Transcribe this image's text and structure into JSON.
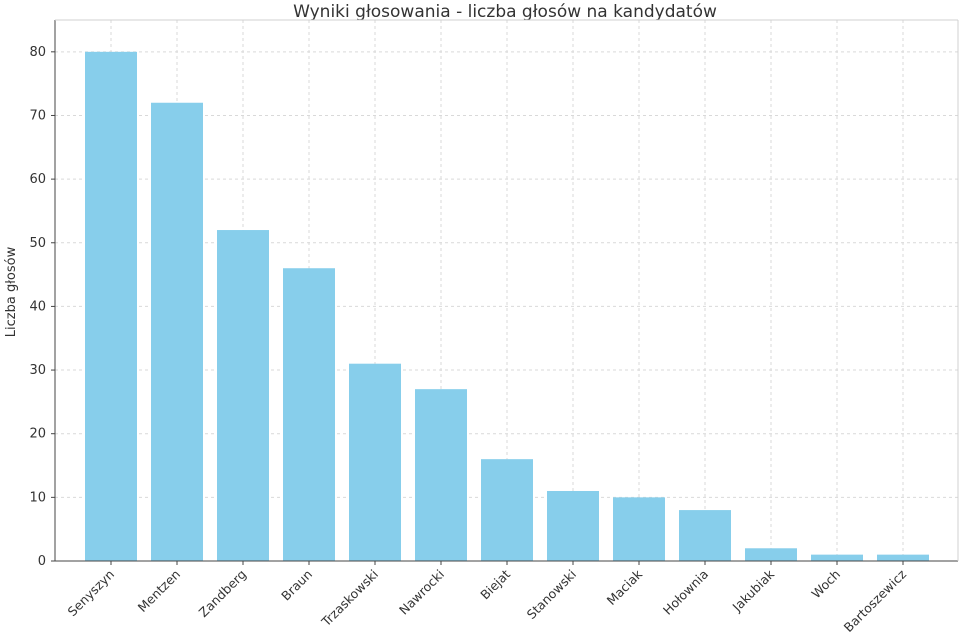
{
  "chart_data": {
    "type": "bar",
    "title": "Wyniki głosowania - liczba głosów na kandydatów",
    "xlabel": "",
    "ylabel": "Liczba głosów",
    "categories": [
      "Senyszyn",
      "Mentzen",
      "Zandberg",
      "Braun",
      "Trzaskowski",
      "Nawrocki",
      "Biejat",
      "Stanowski",
      "Maciak",
      "Hołownia",
      "Jakubiak",
      "Woch",
      "Bartoszewicz"
    ],
    "values": [
      80,
      72,
      52,
      46,
      31,
      27,
      16,
      11,
      10,
      8,
      2,
      1,
      1
    ],
    "ylim": [
      0,
      85
    ],
    "yticks": [
      0,
      10,
      20,
      30,
      40,
      50,
      60,
      70,
      80
    ],
    "grid": true,
    "bar_color": "#87ceeb",
    "grid_color": "#d9d9d9"
  }
}
